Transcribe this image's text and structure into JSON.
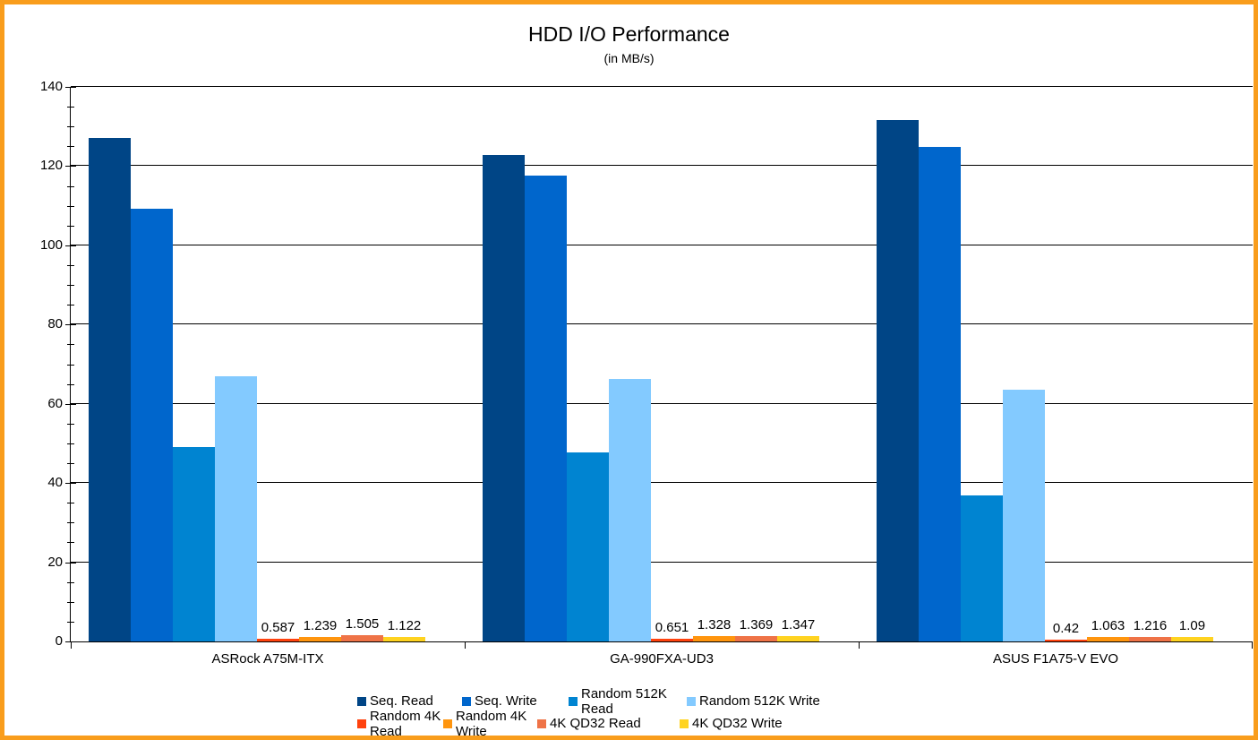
{
  "title": "HDD I/O Performance",
  "subtitle": "(in MB/s)",
  "frame_border_color": "#F99D1C",
  "chart_data": {
    "type": "bar",
    "title": "HDD I/O Performance",
    "subtitle": "(in MB/s)",
    "categories": [
      "ASRock A75M-ITX",
      "GA-990FXA-UD3",
      "ASUS F1A75-V EVO"
    ],
    "series": [
      {
        "name": "Seq. Read",
        "color": "#004586",
        "values": [
          127.2,
          122.9,
          131.7
        ]
      },
      {
        "name": "Seq. Write",
        "color": "#0066CC",
        "values": [
          109.2,
          117.5,
          124.8
        ]
      },
      {
        "name": "Random 512K Read",
        "color": "#0084D1",
        "values": [
          49.0,
          47.8,
          36.8
        ]
      },
      {
        "name": "Random 512K Write",
        "color": "#83CAFF",
        "values": [
          67.0,
          66.2,
          63.6
        ]
      },
      {
        "name": "Random 4K Read",
        "color": "#FF420E",
        "values": [
          0.587,
          0.651,
          0.42
        ],
        "value_labels": [
          "0.587",
          "0.651",
          "0.42"
        ]
      },
      {
        "name": "Random 4K Write",
        "color": "#FF950E",
        "values": [
          1.239,
          1.328,
          1.063
        ],
        "value_labels": [
          "1.239",
          "1.328",
          "1.063"
        ]
      },
      {
        "name": "4K QD32 Read",
        "color": "#EF7347",
        "values": [
          1.505,
          1.369,
          1.216
        ],
        "value_labels": [
          "1.505",
          "1.369",
          "1.216"
        ]
      },
      {
        "name": "4K QD32 Write",
        "color": "#FFD320",
        "values": [
          1.122,
          1.347,
          1.09
        ],
        "value_labels": [
          "1.122",
          "1.347",
          "1.09"
        ]
      }
    ],
    "ylim": [
      0,
      140
    ],
    "yticks": [
      0,
      20,
      40,
      60,
      80,
      100,
      120,
      140
    ],
    "y_minor_step": 5,
    "grid": true,
    "axis_color": "#000000",
    "legend_position": "bottom",
    "legend_rows": [
      [
        "Seq. Read",
        "Seq. Write",
        "Random 512K Read",
        "Random 512K Write"
      ],
      [
        "Random 4K Read",
        "Random 4K Write",
        "4K QD32 Read",
        "4K QD32 Write"
      ]
    ]
  }
}
